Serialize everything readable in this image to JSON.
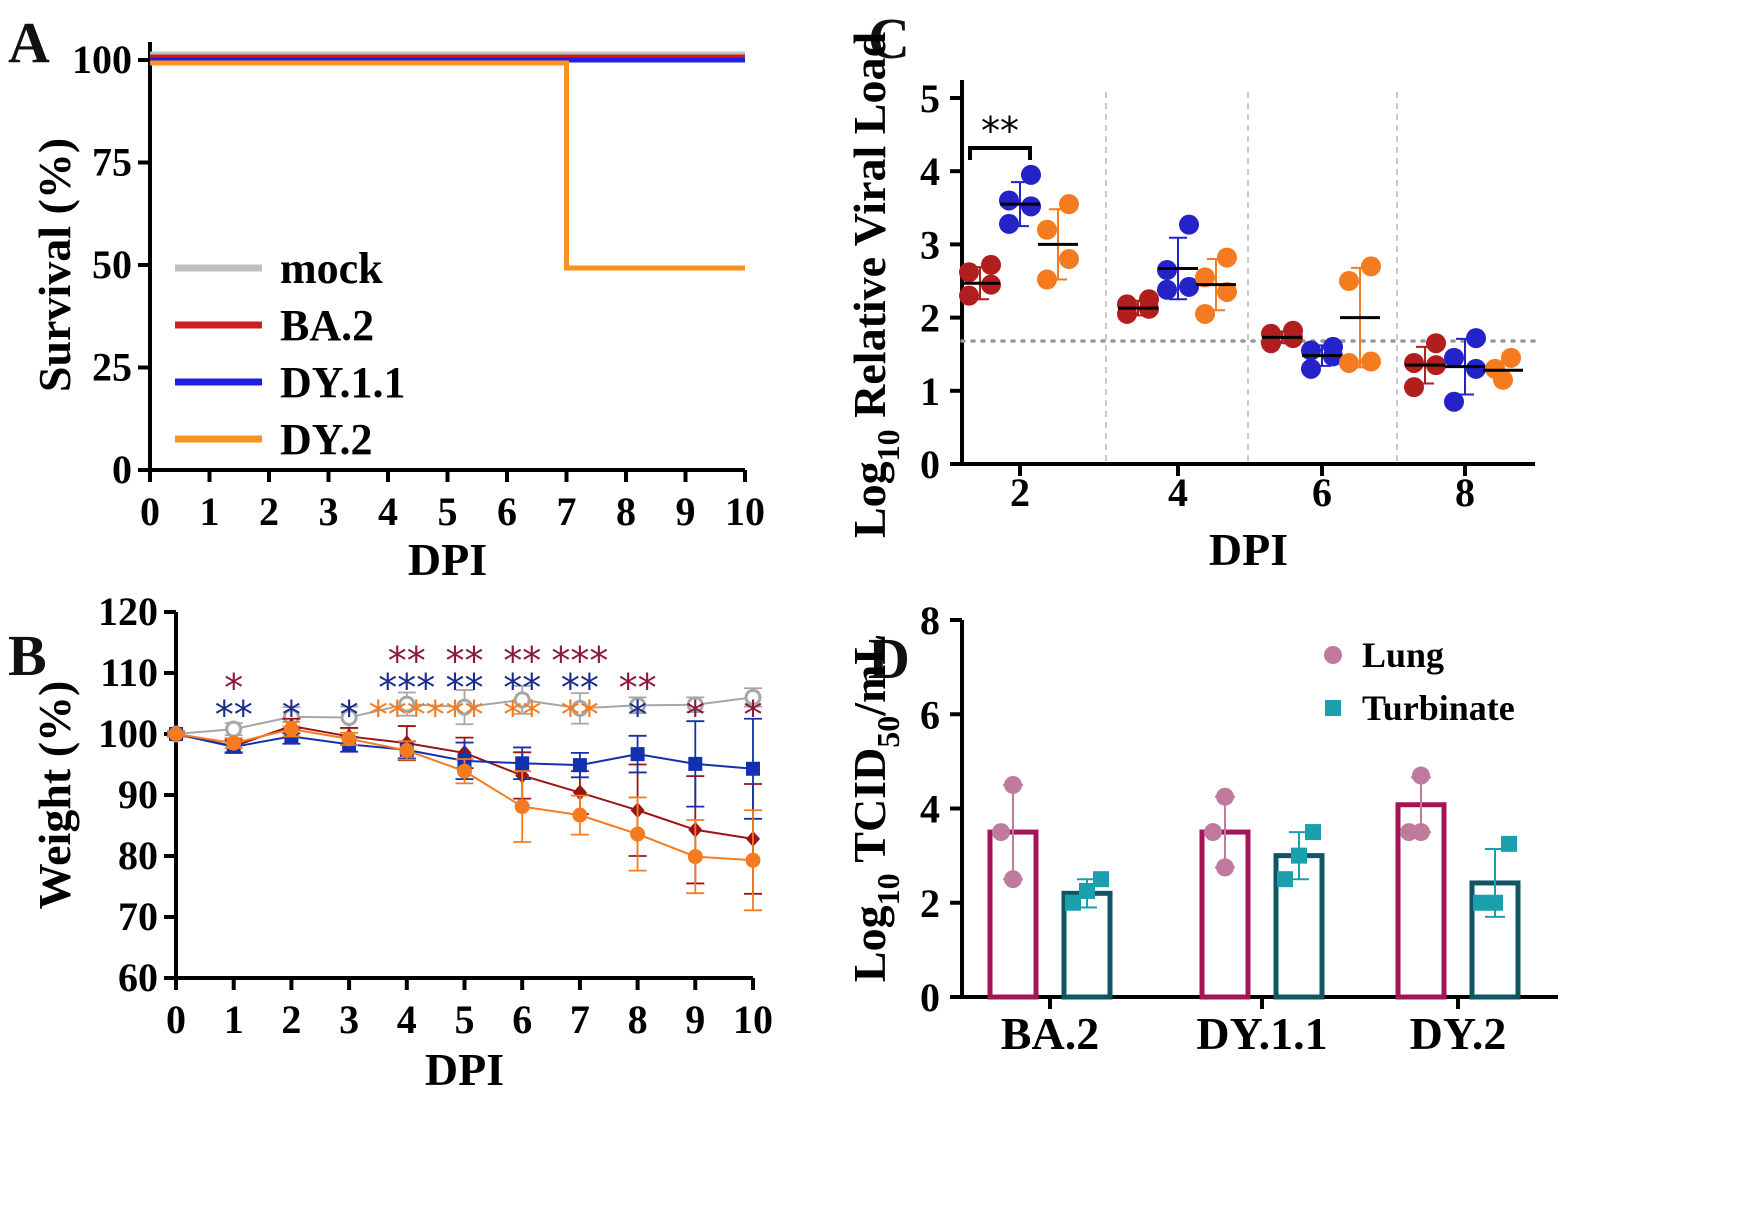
{
  "panels": {
    "a": "A",
    "b": "B",
    "c": "C",
    "d": "D"
  },
  "chart_data": [
    {
      "panel": "A",
      "type": "line",
      "subtype": "survival-step",
      "xlabel": "DPI",
      "ylabel": "Survival (%)",
      "xlim": [
        0,
        10
      ],
      "ylim": [
        0,
        100
      ],
      "xticks": [
        "0",
        "1",
        "2",
        "3",
        "4",
        "5",
        "6",
        "7",
        "8",
        "9",
        "10"
      ],
      "yticks": [
        "0",
        "25",
        "50",
        "75",
        "100"
      ],
      "legend_position": "bottom-left",
      "series": [
        {
          "name": "mock",
          "color": "#c0c0c0",
          "x": [
            0,
            10
          ],
          "y": [
            100,
            100
          ]
        },
        {
          "name": "BA.2",
          "color": "#cc1f1f",
          "x": [
            0,
            10
          ],
          "y": [
            100,
            100
          ]
        },
        {
          "name": "DY.1.1",
          "color": "#1f1fe0",
          "x": [
            0,
            10
          ],
          "y": [
            100,
            100
          ]
        },
        {
          "name": "DY.2",
          "color": "#f7931e",
          "x": [
            0,
            7,
            7,
            10
          ],
          "y": [
            100,
            100,
            50,
            50
          ]
        }
      ]
    },
    {
      "panel": "B",
      "type": "line",
      "xlabel": "DPI",
      "ylabel": "Weight (%)",
      "xlim": [
        0,
        10
      ],
      "ylim": [
        60,
        120
      ],
      "xticks": [
        "0",
        "1",
        "2",
        "3",
        "4",
        "5",
        "6",
        "7",
        "8",
        "9",
        "10"
      ],
      "yticks": [
        "60",
        "70",
        "80",
        "90",
        "100",
        "110",
        "120"
      ],
      "series": [
        {
          "name": "mock",
          "color": "#a6a6a6",
          "marker": "open-circle",
          "x": [
            0,
            1,
            2,
            3,
            4,
            5,
            6,
            7,
            8,
            9,
            10
          ],
          "y": [
            100,
            100.8,
            102.8,
            102.7,
            104.9,
            104.4,
            105.6,
            104.2,
            104.7,
            104.8,
            106.0
          ],
          "err": [
            0.5,
            1.0,
            1.6,
            1.8,
            1.9,
            2.8,
            2.3,
            2.5,
            1.3,
            1.2,
            1.5
          ]
        },
        {
          "name": "BA.2",
          "color": "#9b1414",
          "marker": "diamond",
          "x": [
            0,
            1,
            2,
            3,
            4,
            5,
            6,
            7,
            8,
            9,
            10
          ],
          "y": [
            100,
            98.0,
            101.3,
            99.6,
            98.5,
            96.9,
            93.2,
            90.4,
            87.5,
            84.3,
            82.8
          ],
          "err": [
            0.3,
            1.0,
            1.2,
            1.4,
            2.8,
            2.5,
            3.8,
            3.5,
            7.5,
            8.8,
            9.0
          ]
        },
        {
          "name": "DY.1.1",
          "color": "#1230b0",
          "marker": "square",
          "x": [
            0,
            1,
            2,
            3,
            4,
            5,
            6,
            7,
            8,
            9,
            10
          ],
          "y": [
            100,
            97.9,
            99.6,
            98.3,
            97.4,
            95.6,
            95.2,
            94.9,
            96.7,
            95.1,
            94.3
          ],
          "err": [
            0.3,
            1.0,
            1.2,
            1.2,
            1.4,
            3.0,
            2.6,
            2.0,
            3.0,
            7.0,
            8.2
          ]
        },
        {
          "name": "DY.2",
          "color": "#f47b20",
          "marker": "circle",
          "x": [
            0,
            1,
            2,
            3,
            4,
            5,
            6,
            7,
            8,
            9,
            10
          ],
          "y": [
            100,
            98.5,
            100.8,
            99.2,
            97.3,
            93.9,
            88.1,
            86.7,
            83.6,
            79.9,
            79.3
          ],
          "err": [
            0.3,
            0.8,
            1.2,
            1.0,
            1.5,
            2.0,
            5.8,
            3.2,
            6.0,
            6.0,
            8.2
          ]
        }
      ],
      "annotations": [
        {
          "x": 1,
          "rows": [
            {
              "text": "*",
              "color": "#8b1a3a"
            },
            {
              "text": "**",
              "color": "#1a2d8c"
            }
          ]
        },
        {
          "x": 2,
          "rows": [
            {
              "text": "*",
              "color": "#1a2d8c"
            }
          ]
        },
        {
          "x": 3,
          "rows": [
            {
              "text": "*",
              "color": "#1a2d8c"
            }
          ]
        },
        {
          "x": 4,
          "rows": [
            {
              "text": "**",
              "color": "#8b1a3a"
            },
            {
              "text": "***",
              "color": "#1a2d8c"
            },
            {
              "text": "****",
              "color": "#f47b20"
            }
          ]
        },
        {
          "x": 5,
          "rows": [
            {
              "text": "**",
              "color": "#8b1a3a"
            },
            {
              "text": "**",
              "color": "#1a2d8c"
            },
            {
              "text": "**",
              "color": "#f47b20"
            }
          ]
        },
        {
          "x": 6,
          "rows": [
            {
              "text": "**",
              "color": "#8b1a3a"
            },
            {
              "text": "**",
              "color": "#1a2d8c"
            },
            {
              "text": "**",
              "color": "#f47b20"
            }
          ]
        },
        {
          "x": 7,
          "rows": [
            {
              "text": "***",
              "color": "#8b1a3a"
            },
            {
              "text": "**",
              "color": "#1a2d8c"
            },
            {
              "text": "**",
              "color": "#f47b20"
            }
          ]
        },
        {
          "x": 8,
          "rows": [
            {
              "text": "**",
              "color": "#8b1a3a"
            },
            {
              "text": "*",
              "color": "#1a2d8c"
            }
          ]
        },
        {
          "x": 9,
          "rows": [
            {
              "text": "*",
              "color": "#8b1a3a"
            }
          ]
        },
        {
          "x": 10,
          "rows": [
            {
              "text": "*",
              "color": "#8b1a3a"
            }
          ]
        }
      ]
    },
    {
      "panel": "C",
      "type": "scatter",
      "xlabel": "DPI",
      "ylabel_main": "Log",
      "ylabel_sub": "10",
      "ylabel_rest": " Relative Viral Load",
      "ylim": [
        0,
        5
      ],
      "yticks": [
        "0",
        "1",
        "2",
        "3",
        "4",
        "5"
      ],
      "categories": [
        "2",
        "4",
        "6",
        "8"
      ],
      "threshold": 1.68,
      "group_colors": {
        "BA.2": "#b01e1e",
        "DY.1.1": "#2323c8",
        "DY.2": "#f47b20"
      },
      "groups": [
        {
          "dpi": "2",
          "points": [
            {
              "series": "BA.2",
              "mean": 2.47,
              "sd": 0.22,
              "values": [
                2.3,
                2.45,
                2.62,
                2.72
              ]
            },
            {
              "series": "DY.1.1",
              "mean": 3.55,
              "sd": 0.3,
              "values": [
                3.28,
                3.52,
                3.6,
                3.95
              ]
            },
            {
              "series": "DY.2",
              "mean": 3.0,
              "sd": 0.48,
              "values": [
                2.52,
                2.8,
                3.2,
                3.55
              ]
            }
          ]
        },
        {
          "dpi": "4",
          "points": [
            {
              "series": "BA.2",
              "mean": 2.13,
              "sd": 0.1,
              "values": [
                2.05,
                2.12,
                2.18,
                2.25
              ]
            },
            {
              "series": "DY.1.1",
              "mean": 2.67,
              "sd": 0.42,
              "values": [
                2.38,
                2.42,
                2.65,
                3.27
              ]
            },
            {
              "series": "DY.2",
              "mean": 2.45,
              "sd": 0.35,
              "values": [
                2.05,
                2.35,
                2.55,
                2.82
              ]
            }
          ]
        },
        {
          "dpi": "6",
          "points": [
            {
              "series": "BA.2",
              "mean": 1.73,
              "sd": 0.08,
              "values": [
                1.65,
                1.72,
                1.78,
                1.82
              ]
            },
            {
              "series": "DY.1.1",
              "mean": 1.48,
              "sd": 0.14,
              "values": [
                1.3,
                1.47,
                1.55,
                1.6
              ]
            },
            {
              "series": "DY.2",
              "mean": 2.0,
              "sd": 0.68,
              "values": [
                1.38,
                1.4,
                2.5,
                2.7
              ]
            }
          ]
        },
        {
          "dpi": "8",
          "points": [
            {
              "series": "BA.2",
              "mean": 1.35,
              "sd": 0.25,
              "values": [
                1.05,
                1.35,
                1.38,
                1.65
              ]
            },
            {
              "series": "DY.1.1",
              "mean": 1.33,
              "sd": 0.38,
              "values": [
                0.85,
                1.3,
                1.45,
                1.72
              ]
            },
            {
              "series": "DY.2",
              "mean": 1.28,
              "sd": 0.12,
              "values": [
                1.15,
                1.3,
                1.45
              ]
            }
          ]
        }
      ],
      "significance": {
        "label": "**",
        "from": "BA.2",
        "to": "DY.1.1",
        "dpi": "2"
      }
    },
    {
      "panel": "D",
      "type": "bar",
      "xlabel": "",
      "ylabel_main": "Log",
      "ylabel_sub": "10",
      "ylabel_mid": " TCID",
      "ylabel_sub2": "50",
      "ylabel_rest": "/mL",
      "ylim": [
        0,
        8
      ],
      "yticks": [
        "0",
        "2",
        "4",
        "6",
        "8"
      ],
      "categories": [
        "BA.2",
        "DY.1.1",
        "DY.2"
      ],
      "legend_position": "top-right",
      "series": [
        {
          "name": "Lung",
          "bar_color": "#a31557",
          "point_color": "#c07a9e",
          "values": [
            3.5,
            3.5,
            4.08
          ],
          "sd": [
            1.0,
            0.75,
            0.58
          ],
          "points": [
            [
              2.5,
              3.5,
              4.5
            ],
            [
              2.75,
              3.5,
              4.25
            ],
            [
              3.5,
              3.5,
              4.7
            ]
          ]
        },
        {
          "name": "Turbinate",
          "bar_color": "#0f5662",
          "point_color": "#1aa0ad",
          "values": [
            2.2,
            3.0,
            2.42
          ],
          "sd": [
            0.3,
            0.5,
            0.72
          ],
          "points": [
            [
              2.0,
              2.25,
              2.5
            ],
            [
              2.5,
              3.0,
              3.5
            ],
            [
              2.0,
              2.0,
              3.25
            ]
          ]
        }
      ]
    }
  ]
}
